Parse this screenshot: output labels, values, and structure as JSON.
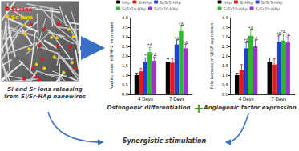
{
  "chart_data": [
    {
      "type": "bar",
      "ylabel": "Fold increase in BMP-2 expression",
      "categories": [
        "4 Days",
        "7 Days"
      ],
      "series": [
        {
          "name": "HAp",
          "color": "#000000",
          "values": [
            1.0,
            1.7
          ],
          "errors": [
            0.1,
            0.15
          ],
          "sig_labels": [
            null,
            null
          ]
        },
        {
          "name": "Si-HAp",
          "color": "#e8191b",
          "values": [
            1.2,
            1.65
          ],
          "errors": [
            0.15,
            0.2
          ],
          "sig_labels": [
            null,
            null
          ]
        },
        {
          "name": "Si/Sr5-HAp",
          "color": "#1f3fcf",
          "values": [
            1.7,
            2.6
          ],
          "errors": [
            0.2,
            0.2
          ],
          "sig_labels": [
            "*",
            "*Δ"
          ]
        },
        {
          "name": "Si/Sr10-HAp",
          "color": "#2eb82e",
          "values": [
            2.2,
            3.3
          ],
          "errors": [
            0.25,
            0.25
          ],
          "sig_labels": [
            "*Δ",
            "*Δ"
          ]
        },
        {
          "name": "Si/Sr20-HAp",
          "color": "#9933cc",
          "values": [
            1.75,
            2.4
          ],
          "errors": [
            0.2,
            0.2
          ],
          "sig_labels": [
            "*Δ",
            "*Δ"
          ]
        }
      ],
      "ylim": [
        0,
        4
      ],
      "yticks": [
        {
          "value": 0,
          "label": "0.0"
        },
        0.5,
        {
          "value": 1,
          "label": "1.0"
        },
        1.5,
        {
          "value": 2,
          "label": "2.0"
        },
        2.5,
        {
          "value": 3,
          "label": "3.0"
        },
        3.5,
        {
          "value": 4,
          "label": "4.0"
        }
      ],
      "legend": "top",
      "grid": false
    },
    {
      "type": "bar",
      "ylabel": "Fold increase in VEGF expression",
      "categories": [
        "4 Days",
        "7 Days"
      ],
      "series": [
        {
          "name": "HAp",
          "color": "#000000",
          "values": [
            1.0,
            1.7
          ],
          "errors": [
            0.1,
            0.2
          ],
          "sig_labels": [
            null,
            null
          ]
        },
        {
          "name": "Si-HAp",
          "color": "#e8191b",
          "values": [
            1.25,
            1.55
          ],
          "errors": [
            0.3,
            0.3
          ],
          "sig_labels": [
            null,
            null
          ]
        },
        {
          "name": "Si/Sr5-HAp",
          "color": "#1f3fcf",
          "values": [
            2.4,
            2.75
          ],
          "errors": [
            0.3,
            0.3
          ],
          "sig_labels": [
            "*Δ",
            "*Δ"
          ]
        },
        {
          "name": "Si/Sr10-HAp",
          "color": "#2eb82e",
          "values": [
            3.05,
            2.8
          ],
          "errors": [
            0.3,
            0.35
          ],
          "sig_labels": [
            "*Δ",
            "*Δ"
          ]
        },
        {
          "name": "Si/Sr20-HAp",
          "color": "#9933cc",
          "values": [
            2.5,
            2.7
          ],
          "errors": [
            0.3,
            0.3
          ],
          "sig_labels": [
            "*Δ",
            "*Δ"
          ]
        }
      ],
      "ylim": [
        0,
        4
      ],
      "yticks": [
        {
          "value": 0,
          "label": "0.0"
        },
        0.5,
        {
          "value": 1,
          "label": "1.0"
        },
        1.5,
        {
          "value": 2,
          "label": "2.0"
        },
        2.5,
        {
          "value": 3,
          "label": "3.0"
        },
        3.5,
        {
          "value": 4,
          "label": "4.0"
        }
      ],
      "legend": "top",
      "grid": false
    }
  ],
  "diagram": {
    "ion_labels": [
      "Si ions",
      "Sr ions"
    ],
    "caption": "Si and Sr ions releasing from Si/Sr-HAp nanowires",
    "chart_captions": [
      "Osteogenic differentiation",
      "Angiogenic factor expression"
    ],
    "joiner": "+",
    "bottom": "Synergistic stimulation"
  }
}
